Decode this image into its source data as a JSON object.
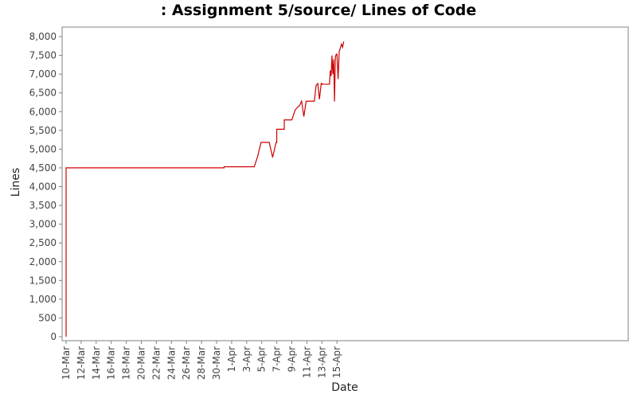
{
  "chart_data": {
    "type": "line",
    "title": ": Assignment 5/source/ Lines of Code",
    "xlabel": "Date",
    "ylabel": "Lines",
    "xlim": [
      "10-Mar",
      "17-Apr"
    ],
    "ylim": [
      0,
      8000
    ],
    "x_tick_labels": [
      "10-Mar",
      "12-Mar",
      "14-Mar",
      "16-Mar",
      "18-Mar",
      "20-Mar",
      "22-Mar",
      "24-Mar",
      "26-Mar",
      "28-Mar",
      "30-Mar",
      "1-Apr",
      "3-Apr",
      "5-Apr",
      "7-Apr",
      "9-Apr",
      "11-Apr",
      "13-Apr",
      "15-Apr"
    ],
    "y_ticks": [
      0,
      500,
      1000,
      1500,
      2000,
      2500,
      3000,
      3500,
      4000,
      4500,
      5000,
      5500,
      6000,
      6500,
      7000,
      7500,
      8000
    ],
    "y_tick_labels": [
      "0",
      "500",
      "1,000",
      "1,500",
      "2,000",
      "2,500",
      "3,000",
      "3,500",
      "4,000",
      "4,500",
      "5,000",
      "5,500",
      "6,000",
      "6,500",
      "7,000",
      "7,500",
      "8,000"
    ],
    "grid": false,
    "series": [
      {
        "color": "#cc0000",
        "points": [
          [
            "10-Mar",
            0
          ],
          [
            "10-Mar",
            4500
          ],
          [
            "31-Mar",
            4500
          ],
          [
            "31-Mar",
            4530
          ],
          [
            "4-Apr",
            4530
          ],
          [
            "4-Apr",
            4800
          ],
          [
            "4-Apr",
            5180
          ],
          [
            "6-Apr",
            5180
          ],
          [
            "6-Apr",
            4780
          ],
          [
            "6-Apr",
            5180
          ],
          [
            "7-Apr",
            5180
          ],
          [
            "7-Apr",
            5530
          ],
          [
            "8-Apr",
            5530
          ],
          [
            "8-Apr",
            5780
          ],
          [
            "9-Apr",
            5780
          ],
          [
            "9-Apr",
            6050
          ],
          [
            "9-Apr",
            6150
          ],
          [
            "10-Apr",
            6150
          ],
          [
            "10-Apr",
            6280
          ],
          [
            "10-Apr",
            5870
          ],
          [
            "10-Apr",
            6280
          ],
          [
            "12-Apr",
            6280
          ],
          [
            "12-Apr",
            6700
          ],
          [
            "12-Apr",
            6750
          ],
          [
            "12-Apr",
            6330
          ],
          [
            "12-Apr",
            6750
          ],
          [
            "13-Apr",
            6750
          ],
          [
            "13-Apr",
            6730
          ],
          [
            "14-Apr",
            6730
          ],
          [
            "14-Apr",
            7100
          ],
          [
            "14-Apr",
            6950
          ],
          [
            "14-Apr",
            7500
          ],
          [
            "14-Apr",
            7000
          ],
          [
            "14-Apr",
            7400
          ],
          [
            "14-Apr",
            6270
          ],
          [
            "14-Apr",
            7450
          ],
          [
            "14-Apr",
            7530
          ],
          [
            "15-Apr",
            7530
          ],
          [
            "15-Apr",
            6870
          ],
          [
            "15-Apr",
            7600
          ],
          [
            "15-Apr",
            7700
          ],
          [
            "15-Apr",
            7800
          ],
          [
            "15-Apr",
            7720
          ],
          [
            "15-Apr",
            7870
          ]
        ]
      }
    ]
  }
}
